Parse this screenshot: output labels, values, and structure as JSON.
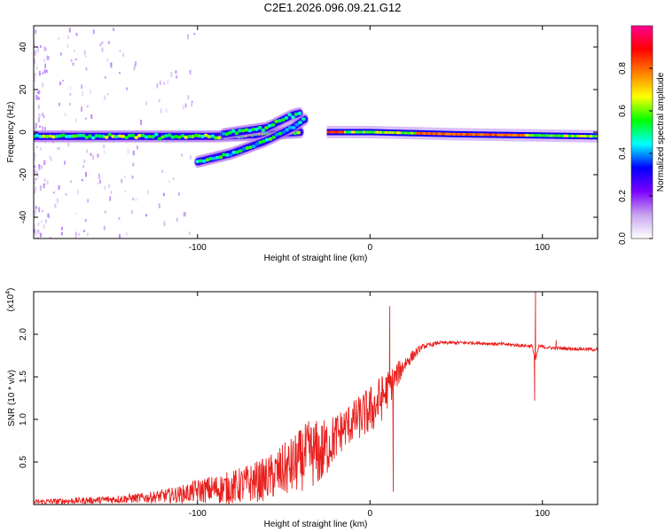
{
  "title": "C2E1.2026.096.09.21.G12",
  "chart_data": [
    {
      "type": "heatmap",
      "xlabel": "Height of straight line (km)",
      "ylabel": "Frequency (Hz)",
      "xlim": [
        -195,
        132
      ],
      "ylim": [
        -50,
        50
      ],
      "xticks": [
        -100,
        0,
        100
      ],
      "yticks": [
        -40,
        -20,
        0,
        20,
        40
      ],
      "colorbar": {
        "label": "Normalized spectral amplitude",
        "range": [
          0,
          1
        ],
        "ticks": [
          0.0,
          0.2,
          0.4,
          0.6,
          0.8
        ],
        "tick_labels": [
          "0.0",
          "0.2",
          "0.4",
          "0.6",
          "0.8"
        ],
        "colors": [
          "#ffffff",
          "#c9a4ef",
          "#7a00ff",
          "#0000ff",
          "#00ffff",
          "#00ff00",
          "#ffff00",
          "#ff8000",
          "#ff0000",
          "#ff0090"
        ]
      },
      "features": [
        {
          "name": "main line",
          "x": [
            -195,
            -90,
            -60,
            -40
          ],
          "freq": [
            -2,
            -2,
            -1,
            0
          ]
        },
        {
          "name": "upper branch",
          "x": [
            -85,
            -60,
            -45,
            -40
          ],
          "freq": [
            -1,
            2,
            8,
            9
          ]
        },
        {
          "name": "lower branch",
          "x": [
            -100,
            -80,
            -60,
            -45,
            -38
          ],
          "freq": [
            -14,
            -10,
            -4,
            2,
            6
          ]
        },
        {
          "name": "steady line",
          "x": [
            -25,
            0,
            50,
            132
          ],
          "freq": [
            0,
            0,
            -1,
            -2
          ]
        }
      ]
    },
    {
      "type": "line",
      "xlabel": "Height of straight line (km)",
      "ylabel": "SNR (10 * v/v)",
      "y_multiplier": "(x10",
      "y_multiplier_exp": "4",
      "xlim": [
        -195,
        132
      ],
      "ylim": [
        0,
        2.5
      ],
      "xticks": [
        -100,
        0,
        100
      ],
      "yticks": [
        0.5,
        1.0,
        1.5,
        2.0
      ],
      "ytick_labels": [
        "0.5",
        "1.0",
        "1.5",
        "2.0"
      ],
      "color": "#e8201e",
      "envelope": {
        "x": [
          -195,
          -160,
          -130,
          -110,
          -100,
          -80,
          -60,
          -45,
          -35,
          -28,
          -22,
          -15,
          -8,
          0,
          5,
          12,
          20,
          30,
          40,
          60,
          80,
          94,
          96,
          98,
          105,
          132
        ],
        "mean": [
          0.03,
          0.05,
          0.08,
          0.12,
          0.16,
          0.2,
          0.3,
          0.45,
          0.6,
          0.6,
          0.75,
          0.9,
          1.0,
          1.1,
          1.2,
          1.4,
          1.65,
          1.85,
          1.9,
          1.9,
          1.88,
          1.86,
          1.7,
          1.86,
          1.84,
          1.82
        ],
        "amp": [
          0.03,
          0.04,
          0.06,
          0.1,
          0.14,
          0.2,
          0.26,
          0.35,
          0.4,
          0.4,
          0.3,
          0.25,
          0.25,
          0.3,
          0.3,
          0.2,
          0.1,
          0.03,
          0.02,
          0.02,
          0.02,
          0.02,
          0.0,
          0.02,
          0.02,
          0.02
        ]
      },
      "spikes": [
        {
          "x": 11.5,
          "y": 2.33
        },
        {
          "x": 13.5,
          "y": 0.15
        },
        {
          "x": 96,
          "y": 2.5
        },
        {
          "x": 95.5,
          "y": 1.22
        },
        {
          "x": 108,
          "y": 1.93
        }
      ]
    }
  ]
}
